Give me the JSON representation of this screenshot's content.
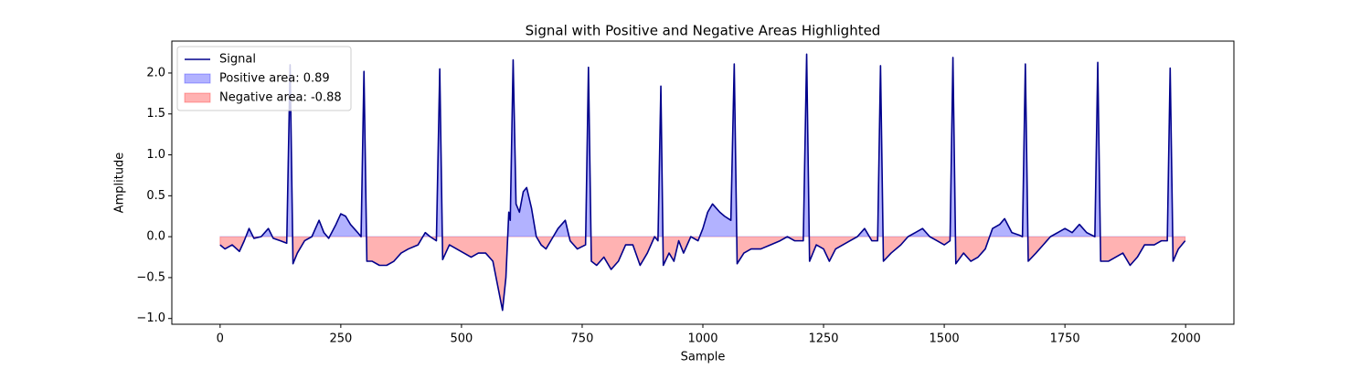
{
  "chart_data": {
    "type": "line",
    "title": "Signal with Positive and Negative Areas Highlighted",
    "x_label": "Sample",
    "y_label": "Amplitude",
    "x": [
      0,
      10,
      25,
      40,
      50,
      60,
      70,
      85,
      100,
      110,
      125,
      138,
      145,
      151,
      160,
      175,
      190,
      205,
      215,
      225,
      240,
      250,
      260,
      270,
      285,
      292,
      298,
      304,
      315,
      330,
      345,
      360,
      375,
      390,
      410,
      425,
      435,
      448,
      455,
      461,
      475,
      490,
      505,
      520,
      535,
      550,
      565,
      575,
      585,
      592,
      598,
      601,
      607,
      613,
      620,
      628,
      635,
      645,
      655,
      665,
      675,
      685,
      700,
      715,
      725,
      740,
      757,
      763,
      769,
      780,
      795,
      810,
      825,
      840,
      855,
      870,
      885,
      900,
      907,
      913,
      918,
      930,
      940,
      950,
      960,
      975,
      990,
      1000,
      1010,
      1020,
      1035,
      1045,
      1058,
      1065,
      1071,
      1085,
      1100,
      1120,
      1140,
      1160,
      1175,
      1190,
      1208,
      1215,
      1221,
      1235,
      1250,
      1262,
      1275,
      1290,
      1305,
      1320,
      1335,
      1350,
      1362,
      1368,
      1374,
      1390,
      1410,
      1425,
      1440,
      1455,
      1470,
      1485,
      1500,
      1512,
      1518,
      1524,
      1540,
      1555,
      1570,
      1585,
      1600,
      1615,
      1625,
      1640,
      1655,
      1662,
      1668,
      1674,
      1690,
      1705,
      1720,
      1735,
      1750,
      1765,
      1780,
      1795,
      1812,
      1818,
      1824,
      1840,
      1855,
      1870,
      1885,
      1900,
      1915,
      1935,
      1950,
      1962,
      1968,
      1974,
      1985,
      1999
    ],
    "series": [
      {
        "name": "Signal",
        "color": "#00008b",
        "values": [
          -0.1,
          -0.15,
          -0.1,
          -0.18,
          -0.05,
          0.1,
          -0.02,
          0.0,
          0.1,
          -0.02,
          -0.05,
          -0.08,
          2.1,
          -0.33,
          -0.2,
          -0.05,
          0.0,
          0.2,
          0.05,
          -0.02,
          0.15,
          0.28,
          0.25,
          0.15,
          0.05,
          0.0,
          2.02,
          -0.3,
          -0.3,
          -0.35,
          -0.35,
          -0.3,
          -0.2,
          -0.15,
          -0.1,
          0.05,
          0.0,
          -0.05,
          2.05,
          -0.28,
          -0.1,
          -0.15,
          -0.2,
          -0.25,
          -0.2,
          -0.2,
          -0.3,
          -0.6,
          -0.9,
          -0.5,
          0.3,
          0.2,
          2.16,
          0.4,
          0.3,
          0.55,
          0.6,
          0.35,
          0.0,
          -0.1,
          -0.15,
          -0.05,
          0.1,
          0.2,
          -0.05,
          -0.15,
          -0.1,
          2.07,
          -0.3,
          -0.35,
          -0.25,
          -0.4,
          -0.3,
          -0.1,
          -0.1,
          -0.35,
          -0.2,
          0.0,
          -0.05,
          1.84,
          -0.35,
          -0.2,
          -0.3,
          -0.05,
          -0.2,
          0.0,
          -0.05,
          0.1,
          0.3,
          0.4,
          0.3,
          0.25,
          0.2,
          2.11,
          -0.33,
          -0.2,
          -0.15,
          -0.15,
          -0.1,
          -0.05,
          0.0,
          -0.05,
          -0.05,
          2.23,
          -0.3,
          -0.1,
          -0.15,
          -0.3,
          -0.15,
          -0.1,
          -0.05,
          0.0,
          0.1,
          -0.05,
          -0.05,
          2.09,
          -0.3,
          -0.2,
          -0.1,
          0.0,
          0.05,
          0.1,
          0.0,
          -0.05,
          -0.1,
          -0.05,
          2.19,
          -0.33,
          -0.2,
          -0.3,
          -0.25,
          -0.15,
          0.1,
          0.15,
          0.22,
          0.05,
          0.02,
          0.0,
          2.11,
          -0.3,
          -0.2,
          -0.1,
          0.0,
          0.05,
          0.1,
          0.05,
          0.15,
          0.05,
          0.0,
          2.13,
          -0.3,
          -0.3,
          -0.25,
          -0.2,
          -0.35,
          -0.25,
          -0.1,
          -0.1,
          -0.05,
          -0.05,
          2.06,
          -0.3,
          -0.15,
          -0.05
        ]
      }
    ],
    "fills": [
      {
        "name": "Positive area: 0.89",
        "color": "#0000ff",
        "where": "positive"
      },
      {
        "name": "Negative area: -0.88",
        "color": "#ff0000",
        "where": "negative"
      }
    ],
    "xlim": [
      -100,
      2100
    ],
    "xticks": [
      0,
      250,
      500,
      750,
      1000,
      1250,
      1500,
      1750,
      2000
    ],
    "ylim": [
      -1.07,
      2.39
    ],
    "yticks": [
      {
        "value": -1,
        "label": "−1.0"
      },
      {
        "value": -0.5,
        "label": "−0.5"
      },
      {
        "value": 0,
        "label": "0.0"
      },
      0.5,
      {
        "value": 1,
        "label": "1.0"
      },
      1.5,
      {
        "value": 2,
        "label": "2.0"
      }
    ],
    "legend": "upper left"
  }
}
